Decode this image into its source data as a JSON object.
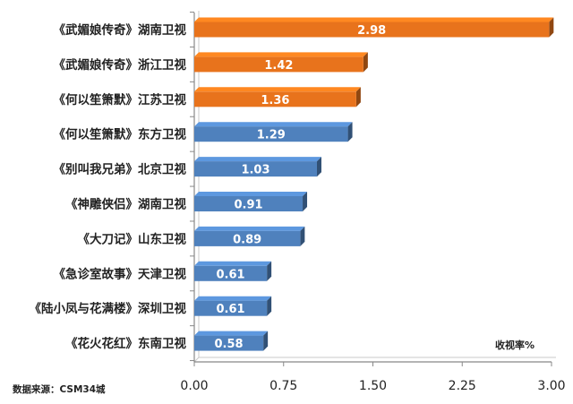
{
  "chart_data": {
    "type": "bar",
    "orientation": "horizontal",
    "categories": [
      "《武媚娘传奇》湖南卫视",
      "《武媚娘传奇》浙江卫视",
      "《何以笙箫默》江苏卫视",
      "《何以笙箫默》东方卫视",
      "《别叫我兄弟》北京卫视",
      "《神雕侠侣》湖南卫视",
      "《大刀记》山东卫视",
      "《急诊室故事》天津卫视",
      "《陆小凤与花满楼》深圳卫视",
      "《花火花红》东南卫视"
    ],
    "values": [
      2.98,
      1.42,
      1.36,
      1.29,
      1.03,
      0.91,
      0.89,
      0.61,
      0.61,
      0.58
    ],
    "data_labels": [
      "2.98",
      "1.42",
      "1.36",
      "1.29",
      "1.03",
      "0.91",
      "0.89",
      "0.61",
      "0.61",
      "0.58"
    ],
    "bar_colors": [
      "#e8731c",
      "#e8731c",
      "#e8731c",
      "#4f81bd",
      "#4f81bd",
      "#4f81bd",
      "#4f81bd",
      "#4f81bd",
      "#4f81bd",
      "#4f81bd"
    ],
    "xlim": [
      0,
      3.0
    ],
    "xticks": [
      0,
      0.75,
      1.5,
      2.25,
      3.0
    ],
    "xtick_labels": [
      "0.00",
      "0.75",
      "1.50",
      "2.25",
      "3.00"
    ],
    "unit_label": "收视率%",
    "grid": false
  },
  "source_note": "数据来源：CSM34城"
}
